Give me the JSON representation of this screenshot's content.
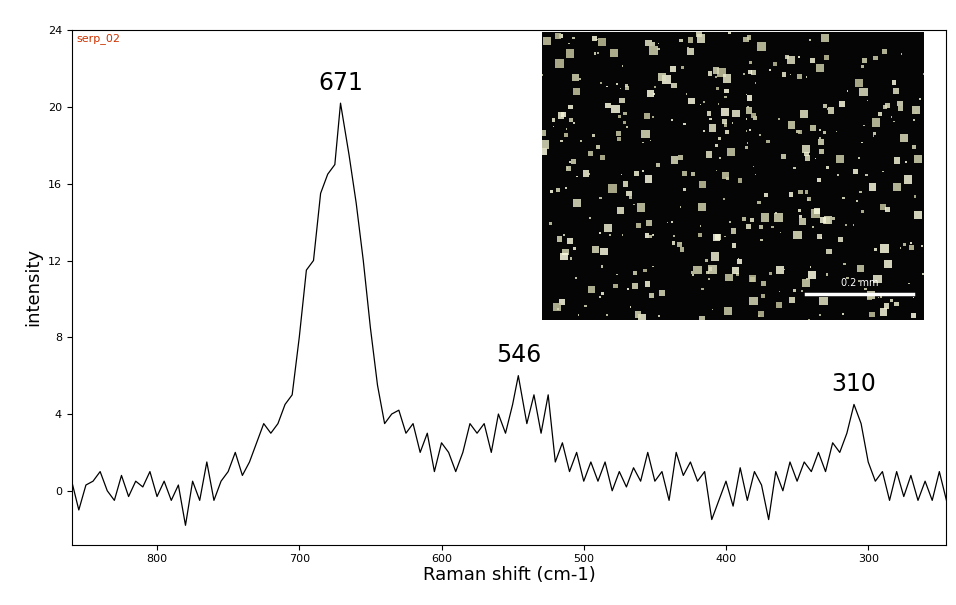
{
  "chart_data": {
    "type": "line",
    "title": "serp_02",
    "x_label": "Raman shift (cm-1)",
    "y_label": "intensity",
    "x": [
      860,
      855,
      850,
      845,
      840,
      835,
      830,
      825,
      820,
      815,
      810,
      805,
      800,
      795,
      790,
      785,
      780,
      775,
      770,
      765,
      760,
      755,
      750,
      745,
      740,
      735,
      730,
      725,
      720,
      715,
      710,
      705,
      700,
      695,
      690,
      685,
      680,
      675,
      671,
      665,
      660,
      655,
      650,
      645,
      640,
      635,
      630,
      625,
      620,
      615,
      610,
      605,
      600,
      595,
      590,
      585,
      580,
      575,
      570,
      565,
      560,
      555,
      550,
      546,
      540,
      535,
      530,
      525,
      520,
      515,
      510,
      505,
      500,
      495,
      490,
      485,
      480,
      475,
      470,
      465,
      460,
      455,
      450,
      445,
      440,
      435,
      430,
      425,
      420,
      415,
      410,
      405,
      400,
      395,
      390,
      385,
      380,
      375,
      370,
      365,
      360,
      355,
      350,
      345,
      340,
      335,
      330,
      325,
      320,
      315,
      310,
      305,
      300,
      295,
      290,
      285,
      280,
      275,
      270,
      265,
      260,
      255,
      250,
      245
    ],
    "values": [
      0.5,
      -1.0,
      0.3,
      0.5,
      1.0,
      0.0,
      -0.5,
      0.8,
      -0.3,
      0.5,
      0.2,
      1.0,
      -0.3,
      0.5,
      -0.5,
      0.3,
      -1.8,
      0.5,
      -0.5,
      1.5,
      -0.5,
      0.5,
      1.0,
      2.0,
      0.8,
      1.5,
      2.5,
      3.5,
      3.0,
      3.5,
      4.5,
      5.0,
      8.0,
      11.5,
      12.0,
      15.5,
      16.5,
      17.0,
      20.2,
      17.5,
      15.0,
      12.0,
      8.5,
      5.5,
      3.5,
      4.0,
      4.2,
      3.0,
      3.5,
      2.0,
      3.0,
      1.0,
      2.5,
      2.0,
      1.0,
      2.0,
      3.5,
      3.0,
      3.5,
      2.0,
      4.0,
      3.0,
      4.5,
      6.0,
      3.5,
      5.0,
      3.0,
      5.0,
      1.5,
      2.5,
      1.0,
      2.0,
      0.5,
      1.5,
      0.5,
      1.5,
      0.0,
      1.0,
      0.2,
      1.2,
      0.5,
      2.0,
      0.5,
      1.0,
      -0.5,
      2.0,
      0.8,
      1.5,
      0.5,
      1.0,
      -1.5,
      -0.5,
      0.5,
      -0.8,
      1.2,
      -0.5,
      1.0,
      0.3,
      -1.5,
      1.0,
      0.0,
      1.5,
      0.5,
      1.5,
      1.0,
      2.0,
      1.0,
      2.5,
      2.0,
      3.0,
      4.5,
      3.5,
      1.5,
      0.5,
      1.0,
      -0.5,
      1.0,
      -0.3,
      0.8,
      -0.5,
      0.5,
      -0.5,
      1.0,
      -0.5
    ],
    "color": "#000000",
    "xlim": [
      860,
      245
    ],
    "xticks": [
      800,
      700,
      600,
      500,
      400,
      300
    ],
    "ylim": [
      -2.8,
      24
    ],
    "yticks": [
      0,
      4,
      8,
      12,
      16,
      20,
      24
    ],
    "grid": false,
    "annotations": [
      {
        "text": "671",
        "x": 671,
        "y": 20.2
      },
      {
        "text": "546",
        "x": 546,
        "y": 6.0
      },
      {
        "text": "310",
        "x": 310,
        "y": 4.5
      }
    ],
    "inset": {
      "scale_bar": "0.2 mm"
    }
  }
}
